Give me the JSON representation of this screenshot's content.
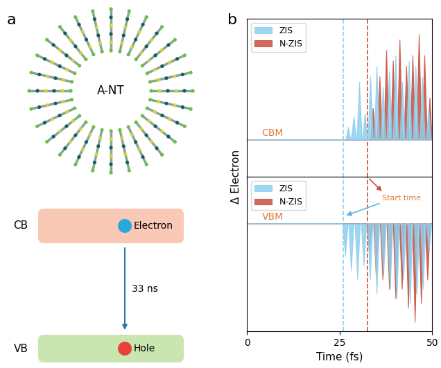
{
  "panel_labels": [
    "a",
    "b"
  ],
  "diagram": {
    "structure_label": "A-NT",
    "cb_label": "CB",
    "vb_label": "VB",
    "electron_label": "Electron",
    "hole_label": "Hole",
    "lifetime": "33 ns"
  },
  "figure": {
    "y_label": "Δ Electron",
    "start_times": [
      {
        "series": "ZIS",
        "x": 26
      },
      {
        "series": "N-ZIS",
        "x": 32.5
      }
    ]
  },
  "chart_data": [
    {
      "type": "area",
      "label": "CBM",
      "xlim": [
        0,
        50
      ],
      "xticks": [
        0,
        25,
        50
      ],
      "ylim": [
        -0.35,
        1.15
      ],
      "yticks": [],
      "tick_labels": false,
      "legend": "upper left",
      "series": [
        {
          "name": "ZIS",
          "color": "#8ecfee",
          "x": [
            0,
            26.6,
            27.3,
            28.0,
            28.1,
            28.8,
            29.5,
            29.6,
            30.3,
            31.0,
            31.1,
            31.8,
            32.5,
            32.6,
            33.3,
            34.0,
            34.3,
            35.0,
            35.7,
            36.0,
            36.7,
            37.4,
            37.7,
            38.4,
            39.1,
            39.4,
            40.1,
            40.8,
            41.2,
            41.9,
            42.6,
            43.0,
            43.7,
            44.4,
            44.8,
            45.5,
            46.2,
            46.6,
            47.3,
            48.0,
            48.3,
            49.0,
            49.7,
            50
          ],
          "values": [
            0,
            0,
            0.12,
            0,
            0,
            0.22,
            0,
            0,
            0.55,
            0,
            0,
            0.25,
            0,
            0,
            0.6,
            0,
            0,
            0.7,
            0,
            0,
            0.5,
            0,
            0,
            0.65,
            0,
            0,
            0.8,
            0,
            0,
            0.55,
            0,
            0,
            0.75,
            0,
            0,
            0.7,
            0,
            0,
            0.6,
            0,
            0,
            0.3,
            0,
            0
          ]
        },
        {
          "name": "N-ZIS",
          "color": "#c9503f",
          "x": [
            0,
            33.3,
            34.0,
            34.7,
            35.1,
            35.8,
            36.5,
            36.9,
            37.6,
            38.3,
            38.7,
            39.4,
            40.1,
            40.5,
            41.2,
            41.9,
            42.3,
            43.0,
            43.7,
            44.0,
            44.7,
            45.4,
            45.7,
            46.4,
            47.1,
            47.2,
            47.9,
            48.6,
            48.7,
            49.3,
            49.9,
            50
          ],
          "values": [
            0,
            0,
            0.3,
            0,
            0,
            0.6,
            0,
            0,
            0.85,
            0,
            0,
            0.75,
            0,
            0,
            0.95,
            0,
            0,
            0.7,
            0,
            0,
            0.8,
            0,
            0,
            1.0,
            0,
            0,
            0.8,
            0,
            0,
            0.4,
            0,
            0
          ]
        }
      ]
    },
    {
      "type": "area",
      "label": "VBM",
      "x_label": "Time (fs)",
      "annotation": "Start time",
      "xlim": [
        0,
        50
      ],
      "xticks": [
        0,
        25,
        50
      ],
      "ylim": [
        -1.15,
        0.5
      ],
      "yticks": [],
      "tick_labels": "x",
      "legend": "upper left",
      "series": [
        {
          "name": "ZIS",
          "color": "#8ecfee",
          "x": [
            0,
            25.8,
            26.5,
            27.2,
            27.4,
            28.1,
            28.8,
            29.1,
            29.8,
            30.5,
            30.8,
            31.5,
            32.2,
            32.5,
            33.2,
            33.9,
            34.3,
            35.0,
            35.7,
            36.1,
            36.8,
            37.5,
            37.9,
            38.6,
            39.3,
            39.7,
            40.4,
            41.1,
            41.5,
            42.2,
            42.9,
            43.3,
            44.0,
            44.7,
            45.1,
            45.8,
            46.5,
            46.8,
            47.5,
            48.2,
            48.4,
            49.1,
            49.8,
            50
          ],
          "values": [
            0,
            0,
            -0.35,
            0,
            0,
            -0.5,
            0,
            0,
            -0.6,
            0,
            0,
            -0.45,
            0,
            0,
            -0.6,
            0,
            0,
            -0.75,
            0,
            0,
            -0.55,
            0,
            0,
            -0.7,
            0,
            0,
            -0.8,
            0,
            0,
            -0.6,
            0,
            0,
            -0.85,
            0,
            0,
            -0.75,
            0,
            0,
            -0.7,
            0,
            0,
            -0.3,
            0,
            0
          ]
        },
        {
          "name": "N-ZIS",
          "color": "#c9503f",
          "x": [
            0,
            32.3,
            33.0,
            33.7,
            34.1,
            34.8,
            35.5,
            35.9,
            36.6,
            37.3,
            37.7,
            38.4,
            39.1,
            39.4,
            40.1,
            40.8,
            41.1,
            41.8,
            42.5,
            42.8,
            43.5,
            44.2,
            44.6,
            45.3,
            46.0,
            46.3,
            47.0,
            47.7,
            48.0,
            48.7,
            49.4,
            50
          ],
          "values": [
            0,
            0,
            -0.3,
            0,
            0,
            -0.55,
            0,
            0,
            -0.6,
            0,
            0,
            -0.7,
            0,
            0,
            -0.8,
            0,
            0,
            -0.7,
            0,
            0,
            -0.9,
            0,
            0,
            -1.05,
            0,
            0,
            -0.85,
            0,
            0,
            -0.6,
            0,
            0
          ]
        }
      ]
    }
  ]
}
